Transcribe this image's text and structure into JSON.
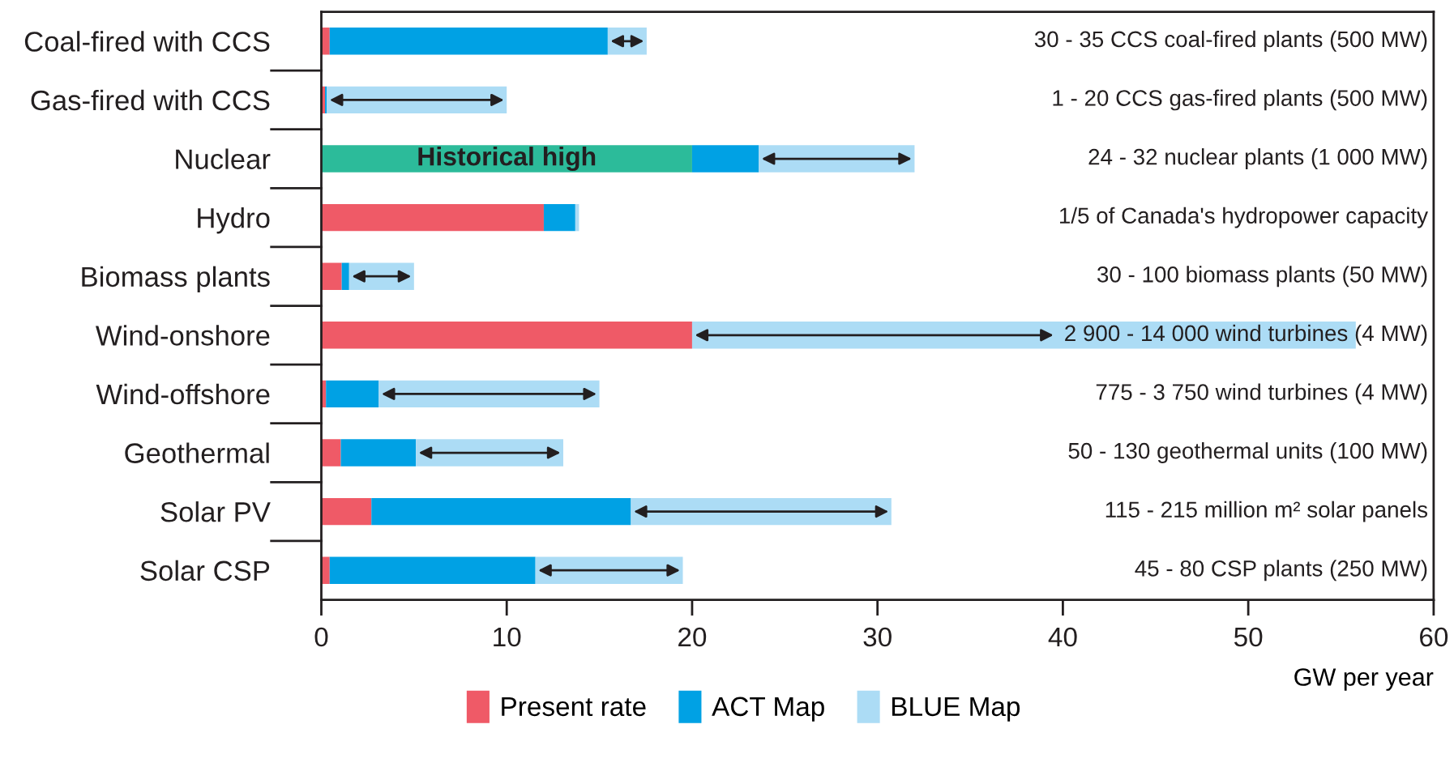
{
  "chart_data": {
    "type": "bar",
    "orientation": "horizontal",
    "stacked": true,
    "categories": [
      "Coal-fired with CCS",
      "Gas-fired with CCS",
      "Nuclear",
      "Hydro",
      "Biomass plants",
      "Wind-onshore",
      "Wind-offshore",
      "Geothermal",
      "Solar PV",
      "Solar CSP"
    ],
    "series": [
      {
        "name": "Present rate",
        "color": "#ef5a67",
        "colors": [
          "#ef5a67",
          "#ef5a67",
          "#2cbb9a",
          "#ef5a67",
          "#ef5a67",
          "#ef5a67",
          "#ef5a67",
          "#ef5a67",
          "#ef5a67",
          "#ef5a67"
        ],
        "values": [
          0.45,
          0.2,
          20,
          12,
          1.1,
          20,
          0.25,
          1.05,
          2.7,
          0.45
        ]
      },
      {
        "name": "ACT Map",
        "color": "#00a1e4",
        "values": [
          15.0,
          0.1,
          3.6,
          1.7,
          0.4,
          0,
          2.85,
          4.05,
          14.0,
          11.1
        ]
      },
      {
        "name": "BLUE Map",
        "color": "#acdcf5",
        "values": [
          2.1,
          9.7,
          8.4,
          0.2,
          3.5,
          35.8,
          11.9,
          7.95,
          14.05,
          7.95
        ]
      }
    ],
    "xlim": [
      0,
      60
    ],
    "xticks": [
      0,
      10,
      20,
      30,
      40,
      50,
      60
    ],
    "xlabel": "GW per year",
    "legend": "bottom",
    "grid": false,
    "annotations": [
      "30 - 35 CCS coal-fired plants (500 MW)",
      "1 - 20 CCS gas-fired plants (500 MW)",
      "24 - 32 nuclear plants (1 000 MW)",
      "1/5 of Canada's hydropower capacity",
      "30 - 100 biomass plants (50 MW)",
      "2 900 - 14 000 wind turbines (4 MW)",
      "775 - 3 750 wind turbines (4 MW)",
      "50 - 130 geothermal units (100 MW)",
      "115 - 215 million m² solar panels",
      "45 - 80 CSP plants (250 MW)",
      "Historical high"
    ]
  }
}
